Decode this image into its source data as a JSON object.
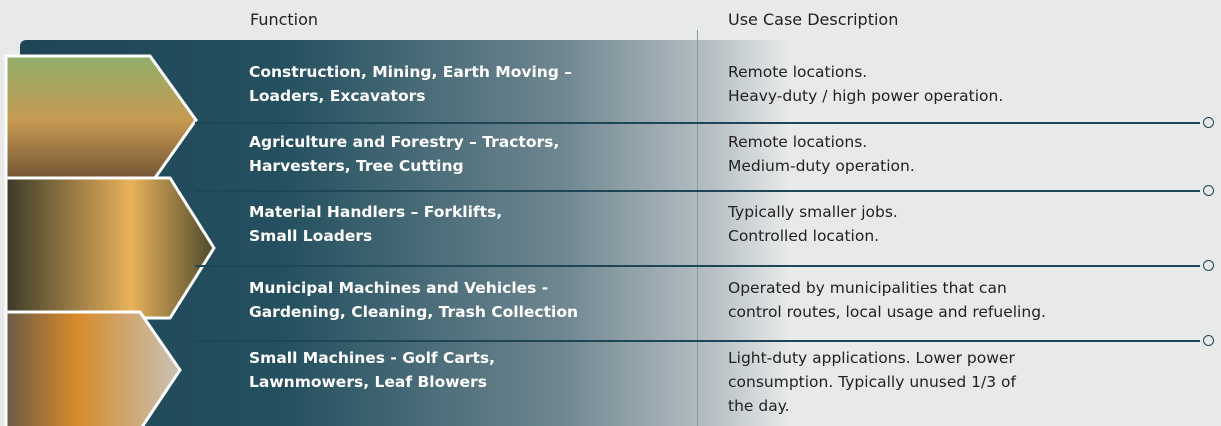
{
  "header": {
    "function": "Function",
    "use_case": "Use Case Description"
  },
  "rows": [
    {
      "function": [
        "Construction, Mining, Earth Moving –",
        "Loaders, Excavators"
      ],
      "description": [
        "Remote locations.",
        "Heavy-duty / high power operation."
      ]
    },
    {
      "function": [
        "Agriculture and Forestry – Tractors,",
        "Harvesters, Tree Cutting"
      ],
      "description": [
        "Remote locations.",
        "Medium-duty operation."
      ]
    },
    {
      "function": [
        "Material Handlers – Forklifts,",
        "Small Loaders"
      ],
      "description": [
        "Typically smaller jobs.",
        "Controlled location."
      ]
    },
    {
      "function": [
        "Municipal Machines and Vehicles -",
        "Gardening, Cleaning, Trash Collection"
      ],
      "description": [
        "Operated by municipalities that can",
        "control routes, local usage and refueling."
      ]
    },
    {
      "function": [
        "Small Machines - Golf Carts,",
        "Lawnmowers, Leaf Blowers"
      ],
      "description": [
        "Light-duty applications. Lower power",
        "consumption. Typically unused 1/3 of",
        "the day."
      ]
    }
  ]
}
